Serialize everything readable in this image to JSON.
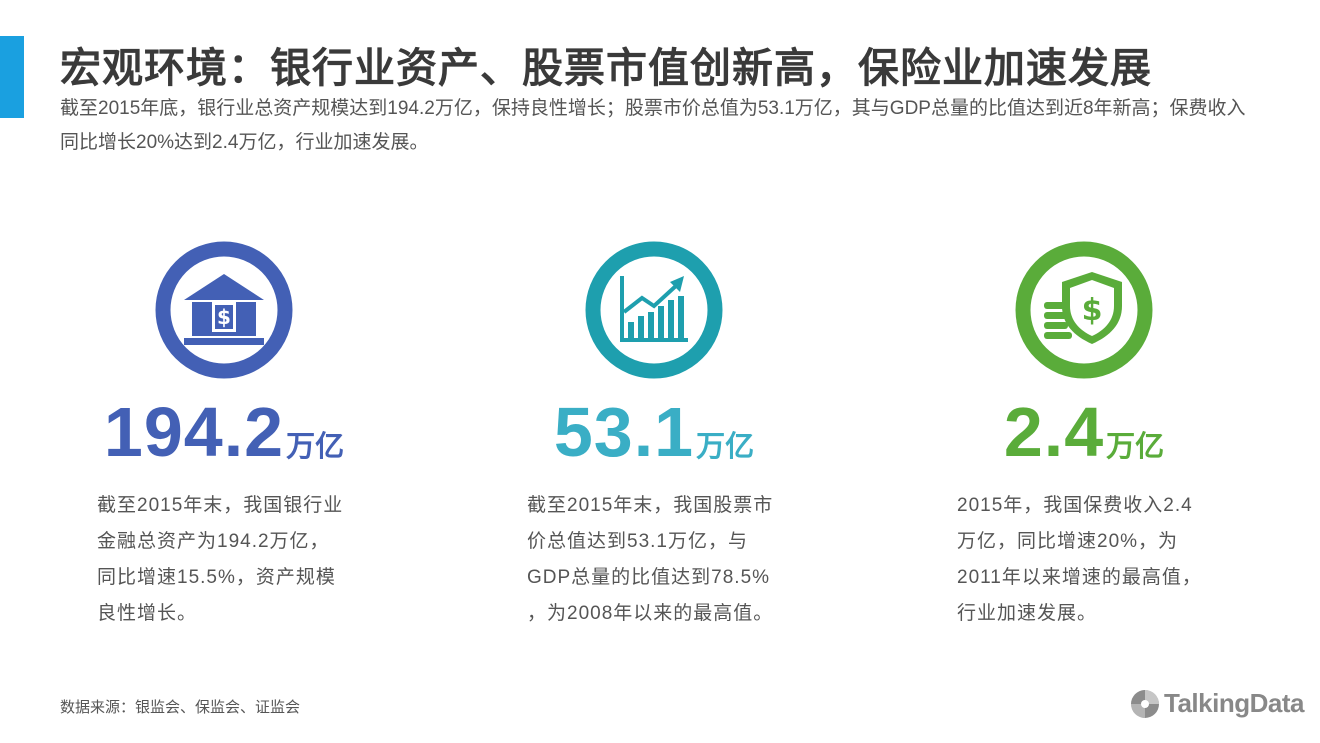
{
  "header": {
    "title": "宏观环境：银行业资产、股票市值创新高，保险业加速发展",
    "summary": "截至2015年底，银行业总资产规模达到194.2万亿，保持良性增长；股票市价总值为53.1万亿，其与GDP总量的比值达到近8年新高；保费收入同比增长20%达到2.4万亿，行业加速发展。"
  },
  "cards": [
    {
      "icon": "bank-dollar-icon",
      "color": "#4360b5",
      "value": "194.2",
      "unit": "万亿",
      "desc_lines": [
        "截至2015年末，我国银行业",
        "金融总资产为194.2万亿，",
        "同比增速15.5%，资产规模",
        "良性增长。"
      ]
    },
    {
      "icon": "growth-chart-icon",
      "color": "#1e9fae",
      "value": "53.1",
      "unit": "万亿",
      "desc_lines": [
        "截至2015年末，我国股票市",
        "价总值达到53.1万亿，与",
        "GDP总量的比值达到78.5%",
        "，为2008年以来的最高值。"
      ]
    },
    {
      "icon": "shield-coins-icon",
      "color": "#5aac3a",
      "value": "2.4",
      "unit": "万亿",
      "desc_lines": [
        "2015年，我国保费收入2.4",
        "万亿，同比增速20%，为",
        "2011年以来增速的最高值，",
        "行业加速发展。"
      ]
    }
  ],
  "footer": {
    "source": "数据来源：银监会、保监会、证监会",
    "logo_text": "TalkingData"
  }
}
